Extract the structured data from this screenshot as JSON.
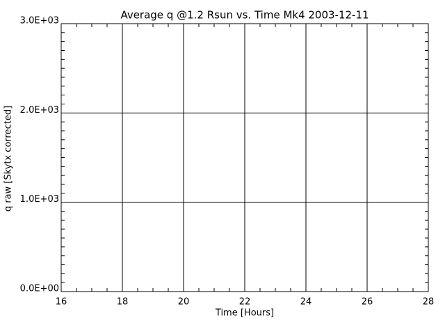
{
  "chart_data": {
    "type": "line",
    "title": "Average q @1.2 Rsun vs. Time   Mk4 2003-12-11",
    "x_label": "Time [Hours]",
    "y_label": "q raw [Skytx corrected]",
    "xlim": [
      16,
      28
    ],
    "xticks": [
      16,
      18,
      20,
      22,
      24,
      26,
      28
    ],
    "ylim": [
      0,
      3000
    ],
    "yticks": [
      {
        "value": 0,
        "label": "0.0E+00"
      },
      {
        "value": 1000,
        "label": "1.0E+03"
      },
      {
        "value": 2000,
        "label": "2.0E+03"
      },
      {
        "value": 3000,
        "label": "3.0E+03"
      }
    ],
    "grid": true,
    "color": "#000000"
  }
}
